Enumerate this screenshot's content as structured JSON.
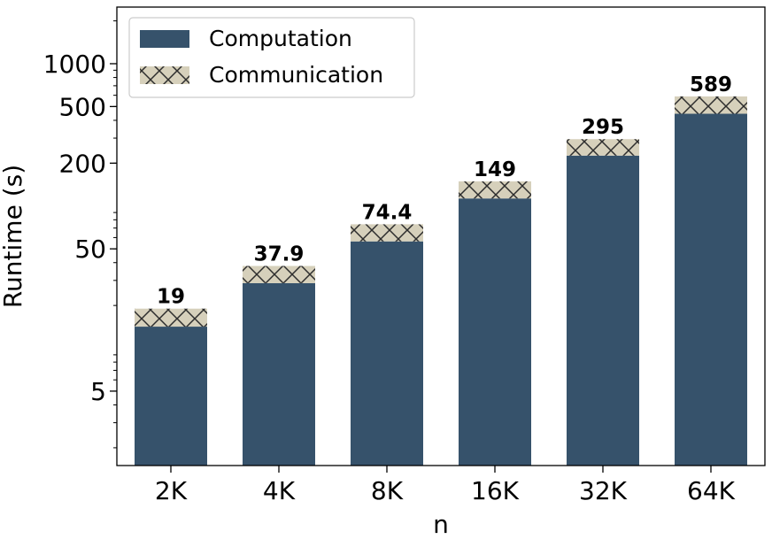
{
  "chart_data": {
    "type": "bar",
    "stacked": true,
    "xlabel": "n",
    "ylabel": "Runtime (s)",
    "y_scale": "log",
    "ylim": [
      1.5,
      2500
    ],
    "y_ticks": [
      5,
      50,
      200,
      500,
      1000
    ],
    "y_tick_labels": [
      "5",
      "50",
      "200",
      "500",
      "1000"
    ],
    "grid": false,
    "legend_position": "top-left",
    "categories": [
      "2K",
      "4K",
      "8K",
      "16K",
      "32K",
      "64K"
    ],
    "series": [
      {
        "name": "Computation",
        "color": "#36526b",
        "pattern": "solid",
        "values": [
          14.2,
          28.7,
          56.4,
          113,
          226,
          445
        ]
      },
      {
        "name": "Communication",
        "color": "#d6d0bb",
        "pattern": "cross-hatch",
        "values": [
          4.8,
          9.2,
          18.0,
          36,
          69,
          144
        ]
      }
    ],
    "totals": [
      19,
      37.9,
      74.4,
      149,
      295,
      589
    ],
    "total_labels": [
      "19",
      "37.9",
      "74.4",
      "149",
      "295",
      "589"
    ]
  }
}
